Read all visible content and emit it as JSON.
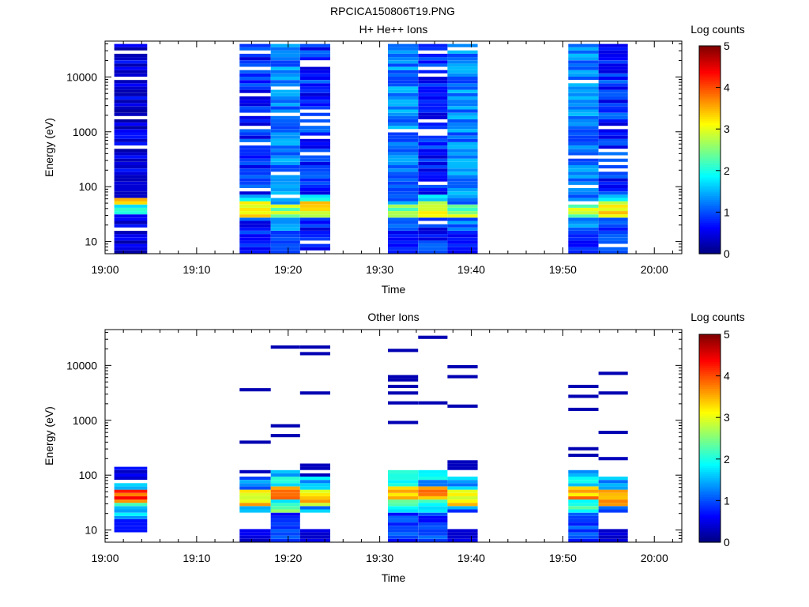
{
  "figure_title": "RPCICA150806T19.PNG",
  "chart_data": [
    {
      "type": "heatmap",
      "title": "H+ He++ Ions",
      "xlabel": "Time",
      "ylabel": "Energy (eV)",
      "colorbar_label": "Log counts",
      "colorbar_ticks": [
        "0",
        "1",
        "2",
        "3",
        "4",
        "5"
      ],
      "x_ticks": [
        "19:00",
        "19:10",
        "19:20",
        "19:30",
        "19:40",
        "19:50",
        "20:00"
      ],
      "y_ticks": [
        "10",
        "100",
        "1000",
        "10000"
      ],
      "x_range_minutes": [
        0,
        63
      ],
      "y_range_eV": [
        6,
        45000
      ],
      "log_y": true,
      "columns": [
        {
          "t_start": 1.0,
          "t_end": 4.6,
          "profile": "h_sparse"
        },
        {
          "t_start": 14.7,
          "t_end": 18.1,
          "profile": "h_dense"
        },
        {
          "t_start": 18.1,
          "t_end": 21.3,
          "profile": "h_light"
        },
        {
          "t_start": 21.3,
          "t_end": 24.6,
          "profile": "h_dense"
        },
        {
          "t_start": 30.9,
          "t_end": 34.2,
          "profile": "h_light"
        },
        {
          "t_start": 34.2,
          "t_end": 37.4,
          "profile": "h_dense"
        },
        {
          "t_start": 37.4,
          "t_end": 40.7,
          "profile": "h_light"
        },
        {
          "t_start": 50.6,
          "t_end": 53.9,
          "profile": "h_light"
        },
        {
          "t_start": 53.9,
          "t_end": 57.1,
          "profile": "h_dense"
        }
      ]
    },
    {
      "type": "heatmap",
      "title": "Other Ions",
      "xlabel": "Time",
      "ylabel": "Energy (eV)",
      "colorbar_label": "Log counts",
      "colorbar_ticks": [
        "0",
        "1",
        "2",
        "3",
        "4",
        "5"
      ],
      "x_ticks": [
        "19:00",
        "19:10",
        "19:20",
        "19:30",
        "19:40",
        "19:50",
        "20:00"
      ],
      "y_ticks": [
        "10",
        "100",
        "1000",
        "10000"
      ],
      "x_range_minutes": [
        0,
        63
      ],
      "y_range_eV": [
        6,
        45000
      ],
      "log_y": true,
      "columns": [
        {
          "t_start": 1.0,
          "t_end": 4.6,
          "profile": "o_a"
        },
        {
          "t_start": 14.7,
          "t_end": 18.1,
          "profile": "o_b"
        },
        {
          "t_start": 18.1,
          "t_end": 21.3,
          "profile": "o_c"
        },
        {
          "t_start": 21.3,
          "t_end": 24.6,
          "profile": "o_b"
        },
        {
          "t_start": 30.9,
          "t_end": 34.2,
          "profile": "o_c"
        },
        {
          "t_start": 34.2,
          "t_end": 37.4,
          "profile": "o_c"
        },
        {
          "t_start": 37.4,
          "t_end": 40.7,
          "profile": "o_b"
        },
        {
          "t_start": 50.6,
          "t_end": 53.9,
          "profile": "o_c"
        },
        {
          "t_start": 53.9,
          "t_end": 57.1,
          "profile": "o_b"
        }
      ]
    }
  ]
}
